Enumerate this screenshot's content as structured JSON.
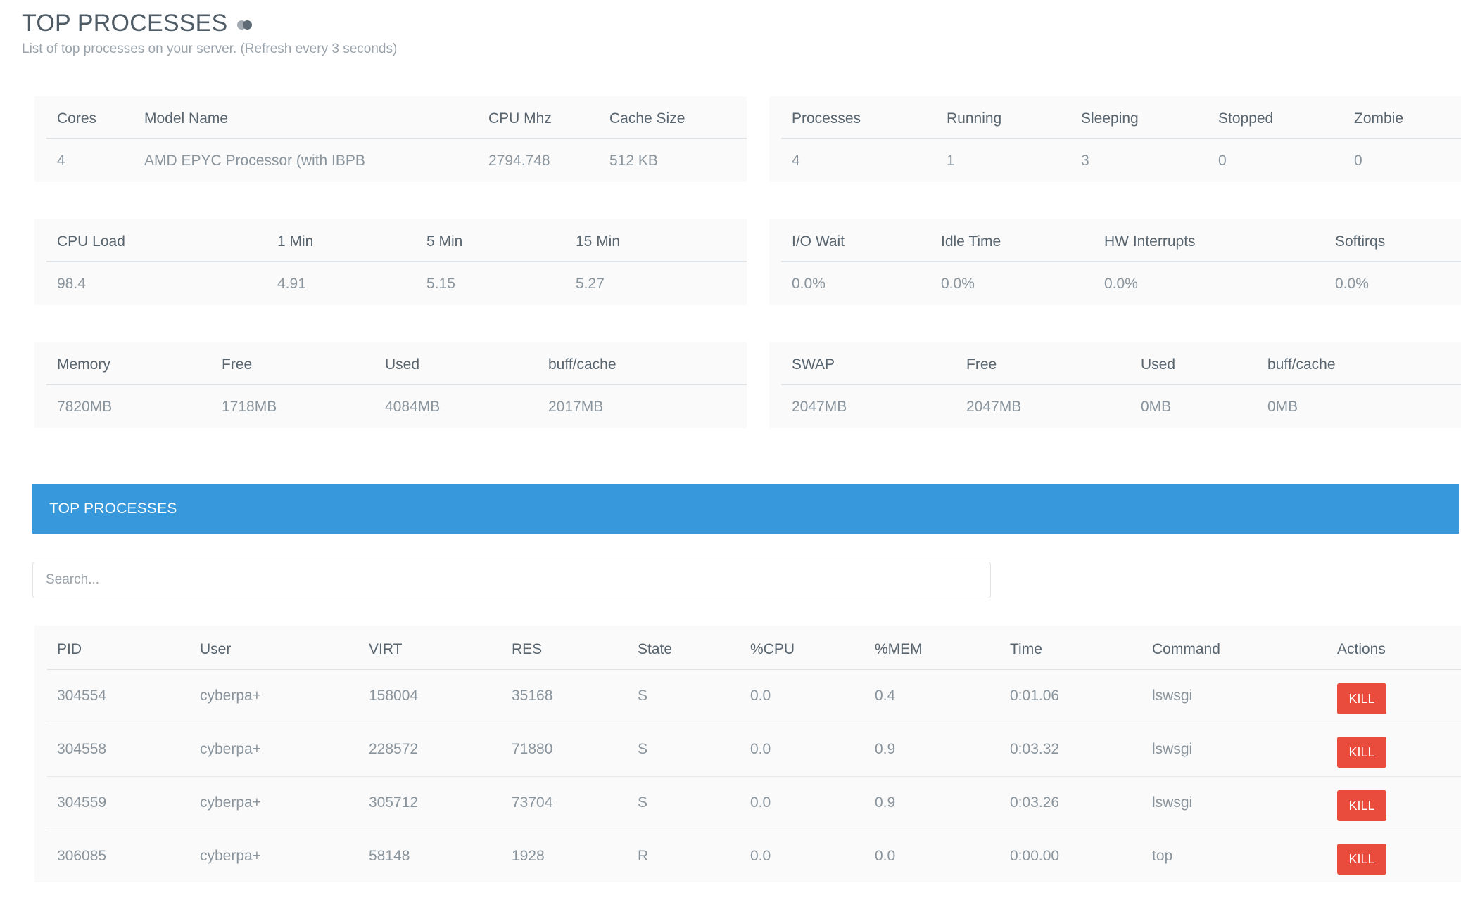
{
  "header": {
    "title": "TOP PROCESSES",
    "subtitle": "List of top processes on your server. (Refresh every 3 seconds)"
  },
  "cpu_info": {
    "headers": [
      "Cores",
      "Model Name",
      "CPU Mhz",
      "Cache Size"
    ],
    "row": [
      "4",
      "AMD EPYC Processor (with IBPB",
      "2794.748",
      "512 KB"
    ]
  },
  "process_stats": {
    "headers": [
      "Processes",
      "Running",
      "Sleeping",
      "Stopped",
      "Zombie"
    ],
    "row": [
      "4",
      "1",
      "3",
      "0",
      "0"
    ]
  },
  "cpu_load": {
    "headers": [
      "CPU Load",
      "1 Min",
      "5 Min",
      "15 Min"
    ],
    "row": [
      "98.4",
      "4.91",
      "5.15",
      "5.27"
    ]
  },
  "io_stats": {
    "headers": [
      "I/O Wait",
      "Idle Time",
      "HW Interrupts",
      "Softirqs"
    ],
    "row": [
      "0.0%",
      "0.0%",
      "0.0%",
      "0.0%"
    ]
  },
  "memory": {
    "headers": [
      "Memory",
      "Free",
      "Used",
      "buff/cache"
    ],
    "row": [
      "7820MB",
      "1718MB",
      "4084MB",
      "2017MB"
    ]
  },
  "swap": {
    "headers": [
      "SWAP",
      "Free",
      "Used",
      "buff/cache"
    ],
    "row": [
      "2047MB",
      "2047MB",
      "0MB",
      "0MB"
    ]
  },
  "processes_panel": {
    "title": "TOP PROCESSES",
    "search_placeholder": "Search...",
    "headers": [
      "PID",
      "User",
      "VIRT",
      "RES",
      "State",
      "%CPU",
      "%MEM",
      "Time",
      "Command",
      "Actions"
    ],
    "rows": [
      {
        "pid": "304554",
        "user": "cyberpa+",
        "virt": "158004",
        "res": "35168",
        "state": "S",
        "cpu": "0.0",
        "mem": "0.4",
        "time": "0:01.06",
        "command": "lswsgi",
        "action": "KILL"
      },
      {
        "pid": "304558",
        "user": "cyberpa+",
        "virt": "228572",
        "res": "71880",
        "state": "S",
        "cpu": "0.0",
        "mem": "0.9",
        "time": "0:03.32",
        "command": "lswsgi",
        "action": "KILL"
      },
      {
        "pid": "304559",
        "user": "cyberpa+",
        "virt": "305712",
        "res": "73704",
        "state": "S",
        "cpu": "0.0",
        "mem": "0.9",
        "time": "0:03.26",
        "command": "lswsgi",
        "action": "KILL"
      },
      {
        "pid": "306085",
        "user": "cyberpa+",
        "virt": "58148",
        "res": "1928",
        "state": "R",
        "cpu": "0.0",
        "mem": "0.0",
        "time": "0:00.00",
        "command": "top",
        "action": "KILL"
      }
    ]
  },
  "colors": {
    "accent": "#3799dc",
    "danger": "#e94b3c"
  }
}
